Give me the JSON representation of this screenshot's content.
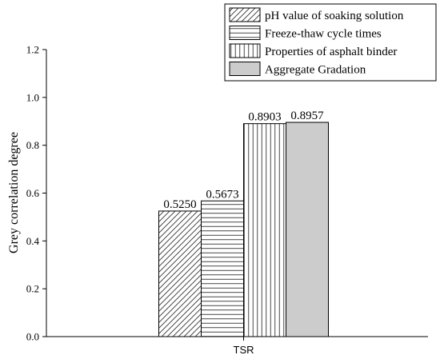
{
  "chart_data": {
    "type": "bar",
    "categories": [
      "TSR"
    ],
    "series": [
      {
        "name": "pH value of soaking solution",
        "values": [
          0.525
        ],
        "label": "0.5250",
        "pattern": "diagonal",
        "fill": "#ffffff"
      },
      {
        "name": "Freeze-thaw cycle times",
        "values": [
          0.5673
        ],
        "label": "0.5673",
        "pattern": "horizontal",
        "fill": "#ffffff"
      },
      {
        "name": "Properties of asphalt binder",
        "values": [
          0.8903
        ],
        "label": "0.8903",
        "pattern": "vertical",
        "fill": "#ffffff"
      },
      {
        "name": "Aggregate Gradation",
        "values": [
          0.8957
        ],
        "label": "0.8957",
        "pattern": "solid",
        "fill": "#cccccc"
      }
    ],
    "title": "",
    "xlabel": "",
    "ylabel": "Grey correlation degree",
    "ylim": [
      0,
      1.2
    ],
    "yticks": [
      "0.0",
      "0.2",
      "0.4",
      "0.6",
      "0.8",
      "1.0",
      "1.2"
    ],
    "grid": false,
    "legend_position": "top-right"
  }
}
